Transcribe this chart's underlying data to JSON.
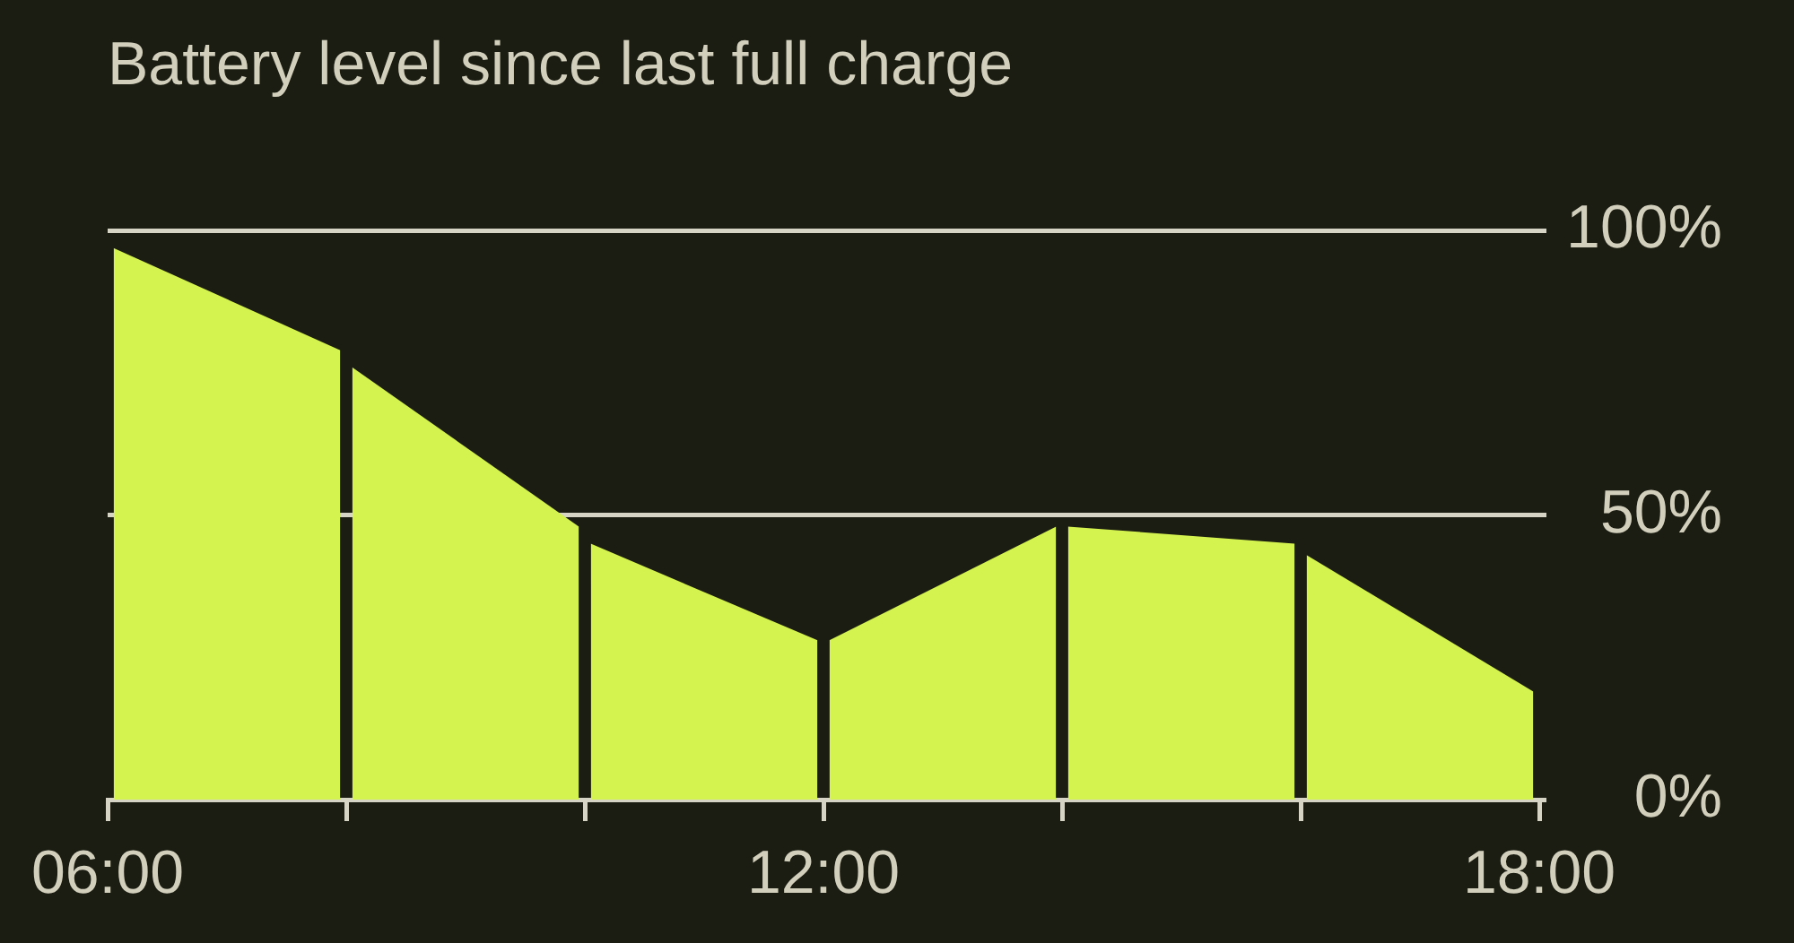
{
  "chart_data": {
    "type": "area",
    "title": "Battery level since last full charge",
    "series": [
      {
        "color": "#d4f34f",
        "x": [
          6.05,
          7.95
        ],
        "values": [
          97,
          79
        ]
      },
      {
        "color": "#d4f34f",
        "x": [
          8.05,
          9.95
        ],
        "values": [
          76,
          48
        ]
      },
      {
        "color": "#d4f34f",
        "x": [
          10.05,
          11.95
        ],
        "values": [
          45,
          28
        ]
      },
      {
        "color": "#d4f34f",
        "x": [
          12.05,
          13.95
        ],
        "values": [
          28,
          48
        ]
      },
      {
        "color": "#d4f34f",
        "x": [
          14.05,
          15.95
        ],
        "values": [
          48,
          45
        ]
      },
      {
        "color": "#d4f34f",
        "x": [
          16.05,
          17.95
        ],
        "values": [
          43,
          19
        ]
      }
    ],
    "xlim": [
      6,
      18
    ],
    "xticks": [
      {
        "value": 6,
        "label": "06:00"
      },
      {
        "value": 8,
        "label": null
      },
      {
        "value": 10,
        "label": null
      },
      {
        "value": 12,
        "label": "12:00"
      },
      {
        "value": 14,
        "label": null
      },
      {
        "value": 16,
        "label": null
      },
      {
        "value": 18,
        "label": "18:00"
      }
    ],
    "ylim": [
      0,
      100
    ],
    "yticks": [
      {
        "value": 0,
        "label": "0%"
      },
      {
        "value": 50,
        "label": "50%"
      },
      {
        "value": 100,
        "label": "100%"
      }
    ],
    "grid": "y",
    "legend": false,
    "marker": "none"
  }
}
